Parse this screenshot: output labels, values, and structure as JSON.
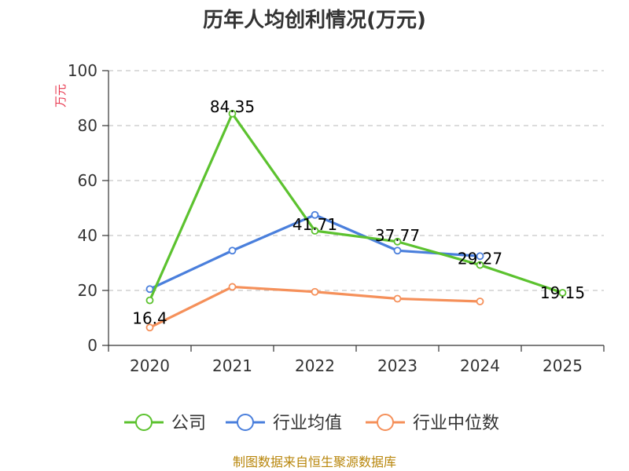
{
  "chart_data": {
    "type": "line",
    "title": "历年人均创利情况(万元)",
    "ylabel": "万元",
    "ylim": [
      0,
      100
    ],
    "yticks": [
      0,
      20,
      40,
      60,
      80,
      100
    ],
    "categories": [
      "2020",
      "2021",
      "2022",
      "2023",
      "2024",
      "2025"
    ],
    "grid": true,
    "legend_position": "bottom",
    "series": [
      {
        "name": "公司",
        "color": "#5cc22f",
        "values": [
          16.4,
          84.35,
          41.71,
          37.77,
          29.27,
          19.15
        ],
        "labels": [
          "16.4",
          "84.35",
          "41.71",
          "37.77",
          "29.27",
          "19.15"
        ]
      },
      {
        "name": "行业均值",
        "color": "#4a7fdc",
        "values": [
          20.5,
          34.5,
          47.5,
          34.5,
          32.5,
          null
        ]
      },
      {
        "name": "行业中位数",
        "color": "#f5905a",
        "values": [
          6.5,
          21.3,
          19.5,
          17.0,
          16.0,
          null
        ]
      }
    ],
    "source": "制图数据来自恒生聚源数据库"
  }
}
